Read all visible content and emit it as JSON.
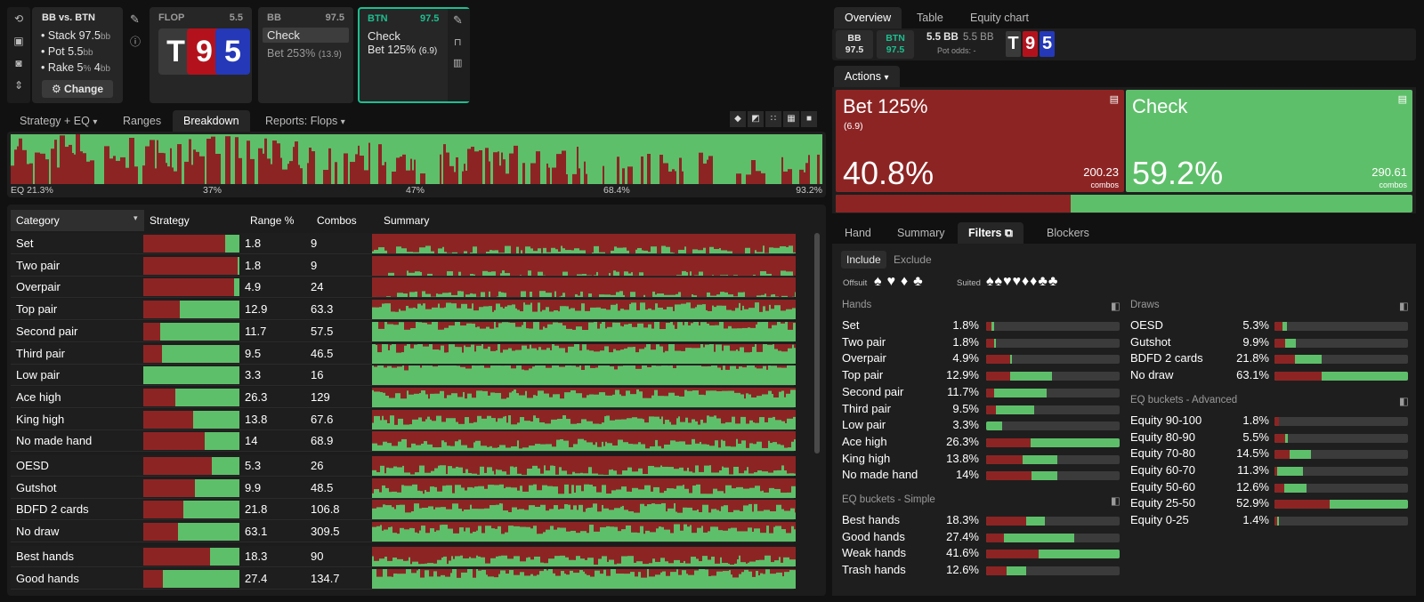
{
  "colors": {
    "bet": "#8d2424",
    "check": "#5ebf6a",
    "accent": "#1dbf8f"
  },
  "left_icons": [
    "undo-icon",
    "save-icon",
    "gamepad-icon",
    "expand-vertical-icon"
  ],
  "info": {
    "title": "BB vs. BTN",
    "stack_label": "Stack",
    "stack_val": "97.5",
    "pot_label": "Pot",
    "pot_val": "5.5",
    "rake_label": "Rake",
    "rake_pct": "5",
    "rake_cap": "4",
    "bb": "bb",
    "pct": "%",
    "change": "Change"
  },
  "flop": {
    "label": "FLOP",
    "pot": "5.5",
    "cards": [
      {
        "rank": "T",
        "color": "#3a3a3a"
      },
      {
        "rank": "9",
        "color": "#b3121c"
      },
      {
        "rank": "5",
        "color": "#2438b8"
      }
    ]
  },
  "bb_card": {
    "label": "BB",
    "stack": "97.5",
    "action1": "Check",
    "action2": "Bet 253%",
    "action2_sub": "(13.9)"
  },
  "btn_card": {
    "label": "BTN",
    "stack": "97.5",
    "action1": "Check",
    "action2": "Bet 125%",
    "action2_sub": "(6.9)"
  },
  "tabs": [
    "Strategy + EQ",
    "Ranges",
    "Breakdown",
    "Reports: Flops"
  ],
  "eq_ticks": [
    "EQ 21.3%",
    "37%",
    "47%",
    "68.4%",
    "93.2%"
  ],
  "table": {
    "headers": [
      "Category",
      "Strategy",
      "Range %",
      "Combos",
      "Summary"
    ],
    "rows": [
      {
        "name": "Set",
        "bet": 0.85,
        "range": "1.8",
        "combos": "9",
        "group": 1
      },
      {
        "name": "Two pair",
        "bet": 0.98,
        "range": "1.8",
        "combos": "9",
        "group": 1
      },
      {
        "name": "Overpair",
        "bet": 0.94,
        "range": "4.9",
        "combos": "24",
        "group": 1
      },
      {
        "name": "Top pair",
        "bet": 0.38,
        "range": "12.9",
        "combos": "63.3",
        "group": 1
      },
      {
        "name": "Second pair",
        "bet": 0.18,
        "range": "11.7",
        "combos": "57.5",
        "group": 1
      },
      {
        "name": "Third pair",
        "bet": 0.19,
        "range": "9.5",
        "combos": "46.5",
        "group": 1
      },
      {
        "name": "Low pair",
        "bet": 0.0,
        "range": "3.3",
        "combos": "16",
        "group": 1
      },
      {
        "name": "Ace high",
        "bet": 0.33,
        "range": "26.3",
        "combos": "129",
        "group": 1
      },
      {
        "name": "King high",
        "bet": 0.52,
        "range": "13.8",
        "combos": "67.6",
        "group": 1
      },
      {
        "name": "No made hand",
        "bet": 0.64,
        "range": "14",
        "combos": "68.9",
        "group": 1
      },
      {
        "name": "OESD",
        "bet": 0.71,
        "range": "5.3",
        "combos": "26",
        "group": 2
      },
      {
        "name": "Gutshot",
        "bet": 0.54,
        "range": "9.9",
        "combos": "48.5",
        "group": 2
      },
      {
        "name": "BDFD 2 cards",
        "bet": 0.42,
        "range": "21.8",
        "combos": "106.8",
        "group": 2
      },
      {
        "name": "No draw",
        "bet": 0.36,
        "range": "63.1",
        "combos": "309.5",
        "group": 2
      },
      {
        "name": "Best hands",
        "bet": 0.69,
        "range": "18.3",
        "combos": "90",
        "group": 3
      },
      {
        "name": "Good hands",
        "bet": 0.2,
        "range": "27.4",
        "combos": "134.7",
        "group": 3
      }
    ]
  },
  "right_tabs": [
    "Overview",
    "Table",
    "Equity chart"
  ],
  "pot_info": {
    "bb_label": "BB",
    "bb_stack": "97.5",
    "btn_label": "BTN",
    "btn_stack": "97.5",
    "pot": "5.5 BB",
    "pot2": "5.5 BB",
    "odds_label": "Pot odds:",
    "odds_val": "-"
  },
  "actions_label": "Actions",
  "actions": [
    {
      "name": "Bet 125%",
      "sub": "(6.9)",
      "pct": "40.8%",
      "combos": "200.23",
      "combos_label": "combos",
      "value": 40.8
    },
    {
      "name": "Check",
      "sub": "",
      "pct": "59.2%",
      "combos": "290.61",
      "combos_label": "combos",
      "value": 59.2
    }
  ],
  "filter_tabs": [
    "Hand",
    "Summary",
    "Filters",
    "Blockers"
  ],
  "include": "Include",
  "exclude": "Exclude",
  "offsuit": "Offsuit",
  "suited": "Suited",
  "suit_icons": [
    "♠",
    "♥",
    "♦",
    "♣"
  ],
  "filters_left": {
    "title": "Hands",
    "rows": [
      {
        "name": "Set",
        "pct": "1.8%",
        "bet": 0.04,
        "fill": 0.06
      },
      {
        "name": "Two pair",
        "pct": "1.8%",
        "bet": 0.06,
        "fill": 0.07
      },
      {
        "name": "Overpair",
        "pct": "4.9%",
        "bet": 0.18,
        "fill": 0.19
      },
      {
        "name": "Top pair",
        "pct": "12.9%",
        "bet": 0.18,
        "fill": 0.49
      },
      {
        "name": "Second pair",
        "pct": "11.7%",
        "bet": 0.06,
        "fill": 0.45
      },
      {
        "name": "Third pair",
        "pct": "9.5%",
        "bet": 0.07,
        "fill": 0.36
      },
      {
        "name": "Low pair",
        "pct": "3.3%",
        "bet": 0.0,
        "fill": 0.12
      },
      {
        "name": "Ace high",
        "pct": "26.3%",
        "bet": 0.33,
        "fill": 1.0
      },
      {
        "name": "King high",
        "pct": "13.8%",
        "bet": 0.27,
        "fill": 0.53
      },
      {
        "name": "No made hand",
        "pct": "14%",
        "bet": 0.34,
        "fill": 0.53
      }
    ],
    "title2": "EQ buckets - Simple",
    "rows2": [
      {
        "name": "Best hands",
        "pct": "18.3%",
        "bet": 0.3,
        "fill": 0.44
      },
      {
        "name": "Good hands",
        "pct": "27.4%",
        "bet": 0.13,
        "fill": 0.66
      },
      {
        "name": "Weak hands",
        "pct": "41.6%",
        "bet": 0.39,
        "fill": 1.0
      },
      {
        "name": "Trash hands",
        "pct": "12.6%",
        "bet": 0.15,
        "fill": 0.3
      }
    ]
  },
  "filters_right": {
    "title": "Draws",
    "rows": [
      {
        "name": "OESD",
        "pct": "5.3%",
        "bet": 0.06,
        "fill": 0.09
      },
      {
        "name": "Gutshot",
        "pct": "9.9%",
        "bet": 0.08,
        "fill": 0.16
      },
      {
        "name": "BDFD 2 cards",
        "pct": "21.8%",
        "bet": 0.15,
        "fill": 0.35
      },
      {
        "name": "No draw",
        "pct": "63.1%",
        "bet": 0.35,
        "fill": 1.0
      }
    ],
    "title2": "EQ buckets - Advanced",
    "rows2": [
      {
        "name": "Equity 90-100",
        "pct": "1.8%",
        "bet": 0.03,
        "fill": 0.03
      },
      {
        "name": "Equity 80-90",
        "pct": "5.5%",
        "bet": 0.08,
        "fill": 0.1
      },
      {
        "name": "Equity 70-80",
        "pct": "14.5%",
        "bet": 0.11,
        "fill": 0.27
      },
      {
        "name": "Equity 60-70",
        "pct": "11.3%",
        "bet": 0.02,
        "fill": 0.21
      },
      {
        "name": "Equity 50-60",
        "pct": "12.6%",
        "bet": 0.07,
        "fill": 0.24
      },
      {
        "name": "Equity 25-50",
        "pct": "52.9%",
        "bet": 0.41,
        "fill": 1.0
      },
      {
        "name": "Equity 0-25",
        "pct": "1.4%",
        "bet": 0.02,
        "fill": 0.03
      }
    ]
  }
}
